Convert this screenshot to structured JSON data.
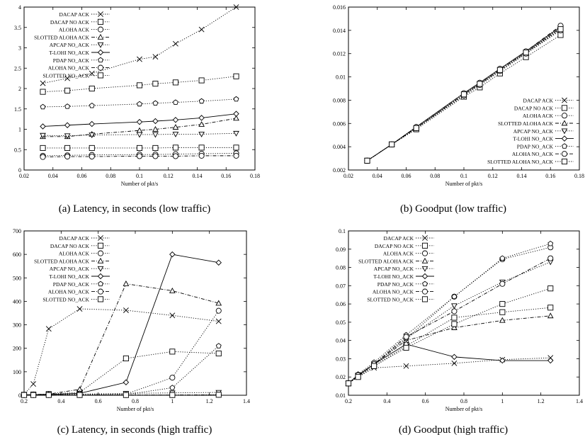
{
  "captions": {
    "a": "(a) Latency, in seconds (low traffic)",
    "b": "(b) Goodput (low traffic)",
    "c": "(c) Latency, in seconds (high traffic)",
    "d": "(d) Goodput (high traffic)"
  },
  "chart_data": [
    {
      "id": "a",
      "type": "line",
      "title": "",
      "xlabel": "Number of pkt/s",
      "ylabel": "",
      "xlim": [
        0.02,
        0.18
      ],
      "ylim": [
        0,
        4
      ],
      "xticks": [
        "0.02",
        "0.04",
        "0.06",
        "0.08",
        "0.1",
        "0.12",
        "0.14",
        "0.16",
        "0.18"
      ],
      "yticks": [
        "0",
        "0.5",
        "1",
        "1.5",
        "2",
        "2.5",
        "3",
        "3.5",
        "4"
      ],
      "grid": false,
      "legend_position": "top-left",
      "x": [
        0.033,
        0.05,
        0.067,
        0.1,
        0.111,
        0.125,
        0.143,
        0.167
      ],
      "series": [
        {
          "name": "DACAP ACK",
          "marker": "x",
          "dash": "dot",
          "values": [
            2.13,
            2.25,
            2.37,
            2.72,
            2.78,
            3.1,
            3.45,
            4.0
          ]
        },
        {
          "name": "DACAP NO ACK",
          "marker": "square",
          "dash": "dot",
          "values": [
            1.92,
            1.95,
            2.0,
            2.08,
            2.12,
            2.15,
            2.2,
            2.3
          ]
        },
        {
          "name": "ALOHA ACK",
          "marker": "circle",
          "dash": "dot",
          "values": [
            0.35,
            0.36,
            0.37,
            0.38,
            0.38,
            0.39,
            0.4,
            0.41
          ]
        },
        {
          "name": "SLOTTED ALOHA ACK",
          "marker": "triangle",
          "dash": "dashdot",
          "values": [
            0.82,
            0.82,
            0.88,
            0.97,
            1.0,
            1.05,
            1.12,
            1.27
          ]
        },
        {
          "name": "APCAP NO_ACK",
          "marker": "triangle-down",
          "dash": "dot",
          "values": [
            0.85,
            0.84,
            0.86,
            0.87,
            0.87,
            0.88,
            0.88,
            0.9
          ]
        },
        {
          "name": "T-LOHI NO_ACK",
          "marker": "diamond",
          "dash": "solid",
          "values": [
            1.07,
            1.1,
            1.13,
            1.18,
            1.2,
            1.23,
            1.28,
            1.38
          ]
        },
        {
          "name": "PDAP NO_ACK",
          "marker": "pentagon",
          "dash": "dot",
          "values": [
            1.55,
            1.56,
            1.58,
            1.62,
            1.64,
            1.66,
            1.69,
            1.74
          ]
        },
        {
          "name": "ALOHA NO_ACK",
          "marker": "circle-filled",
          "dash": "dashdot",
          "values": [
            0.32,
            0.33,
            0.33,
            0.34,
            0.34,
            0.34,
            0.35,
            0.35
          ]
        },
        {
          "name": "SLOTTED NO_ACK",
          "marker": "square-filled",
          "dash": "dot",
          "values": [
            0.54,
            0.54,
            0.54,
            0.54,
            0.54,
            0.55,
            0.55,
            0.55
          ]
        }
      ]
    },
    {
      "id": "b",
      "type": "line",
      "title": "",
      "xlabel": "Number of pkt/s",
      "ylabel": "",
      "xlim": [
        0.02,
        0.18
      ],
      "ylim": [
        0.002,
        0.016
      ],
      "xticks": [
        "0.02",
        "0.04",
        "0.06",
        "0.08",
        "0.1",
        "0.12",
        "0.14",
        "0.16",
        "0.18"
      ],
      "yticks": [
        "0.002",
        "0.004",
        "0.006",
        "0.008",
        "0.01",
        "0.012",
        "0.014",
        "0.016"
      ],
      "grid": false,
      "legend_position": "bottom-right",
      "x": [
        0.033,
        0.05,
        0.067,
        0.1,
        0.111,
        0.125,
        0.143,
        0.167
      ],
      "series": [
        {
          "name": "DACAP ACK",
          "marker": "x",
          "dash": "dot",
          "values": [
            0.0028,
            0.0042,
            0.0056,
            0.0084,
            0.0093,
            0.0105,
            0.012,
            0.0141
          ]
        },
        {
          "name": "DACAP NO ACK",
          "marker": "square",
          "dash": "dot",
          "values": [
            0.0028,
            0.0042,
            0.0055,
            0.0083,
            0.0091,
            0.0103,
            0.0117,
            0.0136
          ]
        },
        {
          "name": "ALOHA ACK",
          "marker": "circle",
          "dash": "dot",
          "values": [
            0.0028,
            0.0042,
            0.0056,
            0.0084,
            0.0093,
            0.0105,
            0.012,
            0.014
          ]
        },
        {
          "name": "SLOTTED ALOHA ACK",
          "marker": "triangle",
          "dash": "dashdot",
          "values": [
            0.0028,
            0.0042,
            0.0056,
            0.0085,
            0.0094,
            0.0106,
            0.0121,
            0.0142
          ]
        },
        {
          "name": "APCAP NO_ACK",
          "marker": "triangle-down",
          "dash": "dot",
          "values": [
            0.0028,
            0.0042,
            0.0056,
            0.0085,
            0.0094,
            0.0106,
            0.0121,
            0.0142
          ]
        },
        {
          "name": "T-LOHI NO_ACK",
          "marker": "diamond",
          "dash": "solid",
          "values": [
            0.0028,
            0.0042,
            0.0057,
            0.0086,
            0.0095,
            0.0107,
            0.0122,
            0.0143
          ]
        },
        {
          "name": "PDAP NO_ACK",
          "marker": "pentagon",
          "dash": "dot",
          "values": [
            0.0028,
            0.0042,
            0.0056,
            0.0085,
            0.0094,
            0.0106,
            0.0121,
            0.0142
          ]
        },
        {
          "name": "ALOHA NO_ACK",
          "marker": "circle-filled",
          "dash": "dashdot",
          "values": [
            0.0028,
            0.0042,
            0.0057,
            0.0086,
            0.0095,
            0.0107,
            0.0122,
            0.0144
          ]
        },
        {
          "name": "SLOTTED ALOHA NO_ACK",
          "marker": "square-filled",
          "dash": "dot",
          "values": [
            0.0028,
            0.0042,
            0.0056,
            0.0085,
            0.0094,
            0.0106,
            0.0121,
            0.0141
          ]
        }
      ]
    },
    {
      "id": "c",
      "type": "line",
      "title": "",
      "xlabel": "Number of pkt/s",
      "ylabel": "",
      "xlim": [
        0.2,
        1.4
      ],
      "ylim": [
        0,
        700
      ],
      "xticks": [
        "0.2",
        "0.4",
        "0.6",
        "0.8",
        "1",
        "1.2",
        "1.4"
      ],
      "yticks": [
        "0",
        "100",
        "200",
        "300",
        "400",
        "500",
        "600",
        "700"
      ],
      "grid": false,
      "legend_position": "top-left",
      "x": [
        0.2,
        0.25,
        0.333,
        0.5,
        0.75,
        1.0,
        1.25
      ],
      "series": [
        {
          "name": "DACAP ACK",
          "marker": "x",
          "dash": "dot",
          "values": [
            3,
            48,
            283,
            368,
            362,
            340,
            315
          ]
        },
        {
          "name": "DACAP NO ACK",
          "marker": "square",
          "dash": "dot",
          "values": [
            2,
            3,
            5,
            12,
            157,
            186,
            178
          ]
        },
        {
          "name": "ALOHA ACK",
          "marker": "circle",
          "dash": "dot",
          "values": [
            1,
            1,
            1,
            2,
            5,
            75,
            360
          ]
        },
        {
          "name": "SLOTTED ALOHA ACK",
          "marker": "triangle",
          "dash": "dashdot",
          "values": [
            2,
            3,
            5,
            25,
            475,
            445,
            392
          ]
        },
        {
          "name": "APCAP NO_ACK",
          "marker": "triangle-down",
          "dash": "dot",
          "values": [
            2,
            2,
            3,
            5,
            8,
            10,
            12
          ]
        },
        {
          "name": "T-LOHI NO_ACK",
          "marker": "diamond",
          "dash": "solid",
          "values": [
            2,
            2,
            3,
            8,
            55,
            600,
            565
          ]
        },
        {
          "name": "PDAP NO_ACK",
          "marker": "pentagon",
          "dash": "dot",
          "values": [
            1,
            1,
            1,
            2,
            3,
            32,
            210
          ]
        },
        {
          "name": "ALOHA NO_ACK",
          "marker": "circle-filled",
          "dash": "dashdot",
          "values": [
            1,
            1,
            1,
            1,
            1,
            1,
            2
          ]
        },
        {
          "name": "SLOTTED NO_ACK",
          "marker": "square-filled",
          "dash": "dot",
          "values": [
            1,
            1,
            1,
            1,
            1,
            1,
            2
          ]
        }
      ]
    },
    {
      "id": "d",
      "type": "line",
      "title": "",
      "xlabel": "Number of pkt/s",
      "ylabel": "",
      "xlim": [
        0.2,
        1.4
      ],
      "ylim": [
        0.01,
        0.1
      ],
      "xticks": [
        "0.2",
        "0.4",
        "0.6",
        "0.8",
        "1",
        "1.2",
        "1.4"
      ],
      "yticks": [
        "0.01",
        "0.02",
        "0.03",
        "0.04",
        "0.05",
        "0.06",
        "0.07",
        "0.08",
        "0.09",
        "0.1"
      ],
      "grid": false,
      "legend_position": "top-left",
      "x": [
        0.2,
        0.25,
        0.333,
        0.5,
        0.75,
        1.0,
        1.25
      ],
      "series": [
        {
          "name": "DACAP ACK",
          "marker": "x",
          "dash": "dot",
          "values": [
            0.0165,
            0.02,
            0.025,
            0.026,
            0.0275,
            0.0295,
            0.0305
          ]
        },
        {
          "name": "DACAP NO ACK",
          "marker": "square",
          "dash": "dot",
          "values": [
            0.0165,
            0.0205,
            0.026,
            0.037,
            0.0525,
            0.0555,
            0.058
          ]
        },
        {
          "name": "ALOHA ACK",
          "marker": "circle",
          "dash": "dot",
          "values": [
            0.0165,
            0.021,
            0.027,
            0.041,
            0.064,
            0.0845,
            0.091
          ]
        },
        {
          "name": "SLOTTED ALOHA ACK",
          "marker": "triangle",
          "dash": "dashdot",
          "values": [
            0.0165,
            0.0205,
            0.027,
            0.04,
            0.047,
            0.051,
            0.0535
          ]
        },
        {
          "name": "APCAP NO_ACK",
          "marker": "triangle-down",
          "dash": "dot",
          "values": [
            0.0165,
            0.021,
            0.027,
            0.041,
            0.059,
            0.072,
            0.083
          ]
        },
        {
          "name": "T-LOHI NO_ACK",
          "marker": "diamond",
          "dash": "solid",
          "values": [
            0.0165,
            0.021,
            0.027,
            0.038,
            0.031,
            0.029,
            0.029
          ]
        },
        {
          "name": "PDAP NO_ACK",
          "marker": "pentagon",
          "dash": "dot",
          "values": [
            0.0165,
            0.0215,
            0.028,
            0.043,
            0.064,
            0.085,
            0.093
          ]
        },
        {
          "name": "ALOHA NO_ACK",
          "marker": "circle-filled",
          "dash": "dashdot",
          "values": [
            0.0165,
            0.021,
            0.027,
            0.042,
            0.056,
            0.071,
            0.085
          ]
        },
        {
          "name": "SLOTTED NO_ACK",
          "marker": "square-filled",
          "dash": "dot",
          "values": [
            0.0165,
            0.02,
            0.026,
            0.036,
            0.049,
            0.06,
            0.0685
          ]
        }
      ]
    }
  ]
}
